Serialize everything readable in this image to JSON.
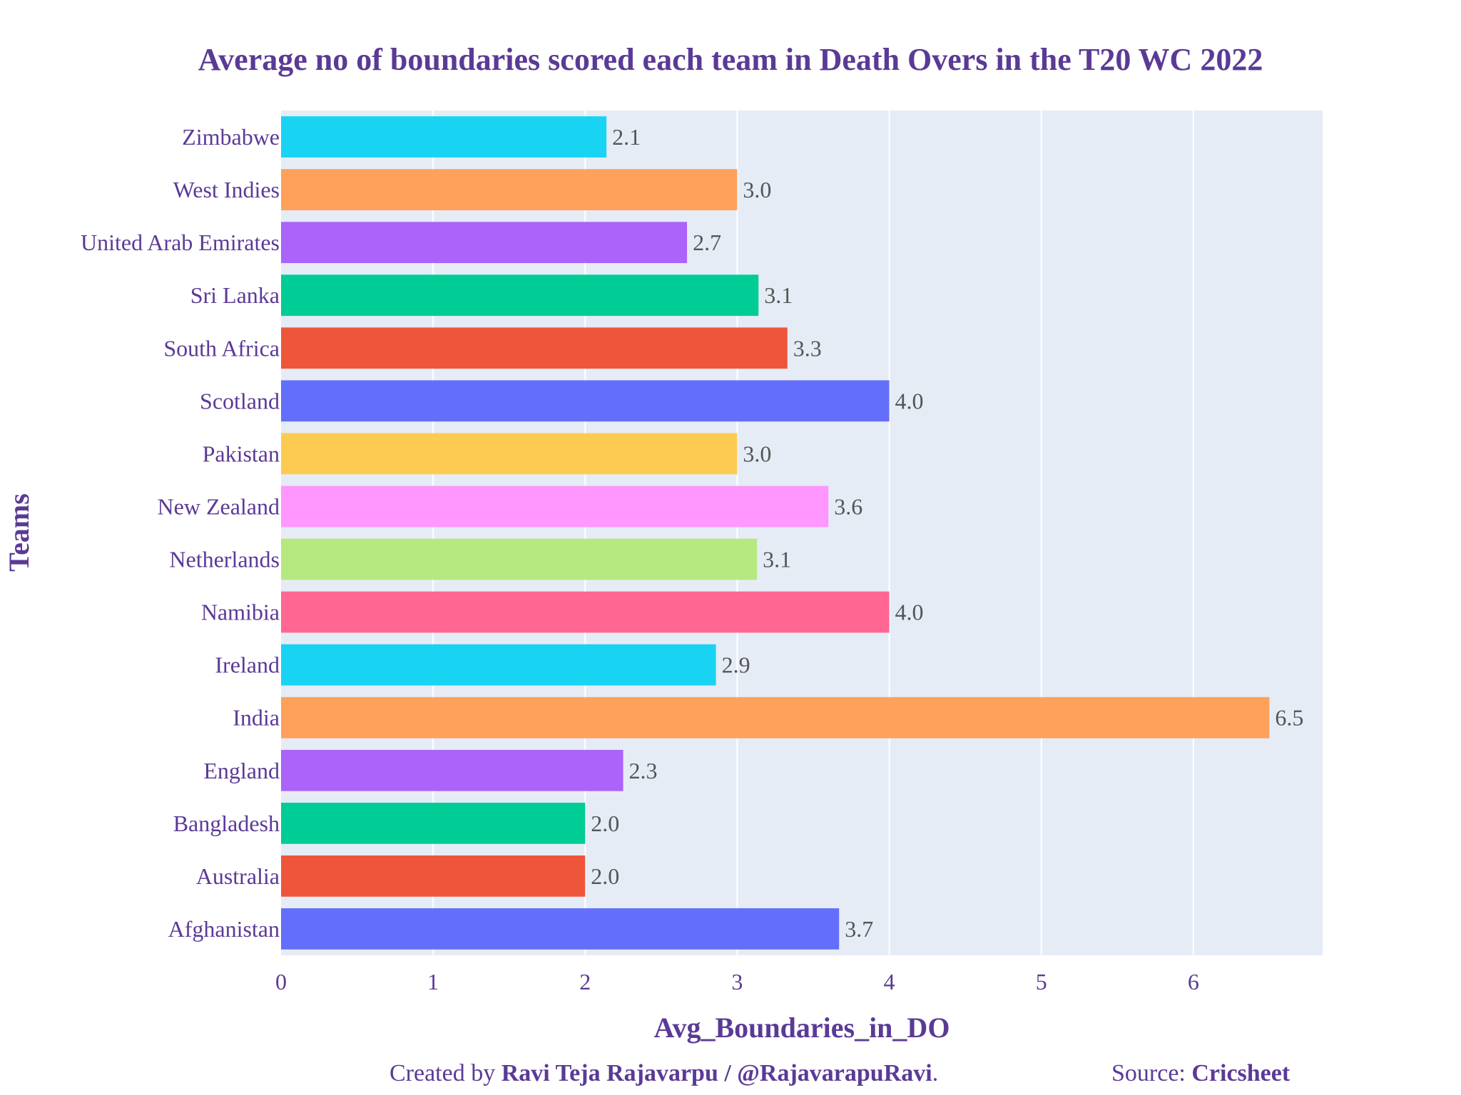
{
  "chart_data": {
    "type": "bar",
    "orientation": "horizontal",
    "title": "Average no of boundaries scored each team in Death Overs in the T20 WC 2022",
    "xlabel": "Avg_Boundaries_in_DO",
    "ylabel": "Teams",
    "xlim": [
      0,
      6.85
    ],
    "x_ticks": [
      "0",
      "1",
      "2",
      "3",
      "4",
      "5",
      "6"
    ],
    "grid": true,
    "categories": [
      "Afghanistan",
      "Australia",
      "Bangladesh",
      "England",
      "India",
      "Ireland",
      "Namibia",
      "Netherlands",
      "New Zealand",
      "Pakistan",
      "Scotland",
      "South Africa",
      "Sri Lanka",
      "United Arab Emirates",
      "West Indies",
      "Zimbabwe"
    ],
    "values": [
      3.67,
      2.0,
      2.0,
      2.25,
      6.5,
      2.86,
      4.0,
      3.13,
      3.6,
      3.0,
      4.0,
      3.33,
      3.14,
      2.67,
      3.0,
      2.14
    ],
    "value_labels": [
      "3.7",
      "2.0",
      "2.0",
      "2.3",
      "6.5",
      "2.9",
      "4.0",
      "3.1",
      "3.6",
      "3.0",
      "4.0",
      "3.3",
      "3.1",
      "2.7",
      "3.0",
      "2.1"
    ],
    "colors": [
      "#636efa",
      "#ef553b",
      "#00cc96",
      "#ab63fa",
      "#ffa15a",
      "#19d3f3",
      "#ff6692",
      "#b6e880",
      "#ff97ff",
      "#fecb52",
      "#636efa",
      "#ef553b",
      "#00cc96",
      "#ab63fa",
      "#ffa15a",
      "#19d3f3"
    ],
    "plot_bg": "#e5ecf6",
    "text_color": "#5b3a96"
  },
  "footer": {
    "created_prefix": "Created by ",
    "author": "Ravi Teja Rajavarpu / @RajavarapuRavi",
    "created_suffix": ".",
    "source_prefix": "Source: ",
    "source": "Cricsheet"
  }
}
